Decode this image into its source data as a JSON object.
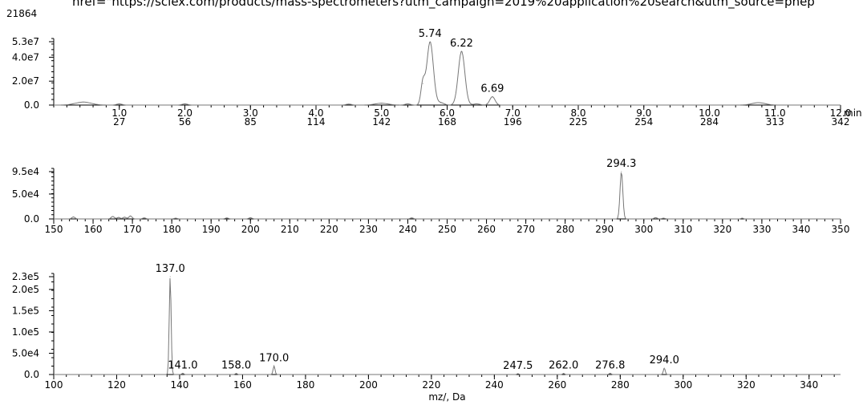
{
  "header": {
    "counter": "21864",
    "href_text": "href=\"https://sciex.com/products/mass-spectrometers?utm_campaign=2019%20application%20search&utm_source=phep"
  },
  "chart_data": [
    {
      "type": "line",
      "name": "chromatogram",
      "xlim": [
        0,
        12.0
      ],
      "ylim": [
        0,
        53000000.0
      ],
      "y_ticks": [
        {
          "value": 0,
          "label": "0.0"
        },
        {
          "value": 20000000.0,
          "label": "2.0e7"
        },
        {
          "value": 40000000.0,
          "label": "4.0e7"
        },
        {
          "value": 53000000.0,
          "label": "5.3e7"
        }
      ],
      "x_ticks": [
        {
          "value": 1.0,
          "label": "1.0",
          "scan": "27"
        },
        {
          "value": 2.0,
          "label": "2.0",
          "scan": "56"
        },
        {
          "value": 3.0,
          "label": "3.0",
          "scan": "85"
        },
        {
          "value": 4.0,
          "label": "4.0",
          "scan": "114"
        },
        {
          "value": 5.0,
          "label": "5.0",
          "scan": "142"
        },
        {
          "value": 6.0,
          "label": "6.0",
          "scan": "168"
        },
        {
          "value": 7.0,
          "label": "7.0",
          "scan": "196"
        },
        {
          "value": 8.0,
          "label": "8.0",
          "scan": "225"
        },
        {
          "value": 9.0,
          "label": "9.0",
          "scan": "254"
        },
        {
          "value": 10.0,
          "label": "10.0",
          "scan": "284"
        },
        {
          "value": 11.0,
          "label": "11.0",
          "scan": "313"
        },
        {
          "value": 12.0,
          "label": "12.0",
          "scan": "342"
        }
      ],
      "x_unit": "min",
      "peaks": [
        {
          "x": 0.45,
          "y": 2500000.0,
          "w": 0.12
        },
        {
          "x": 1.0,
          "y": 1000000.0,
          "w": 0.04
        },
        {
          "x": 2.0,
          "y": 1000000.0,
          "w": 0.04
        },
        {
          "x": 4.5,
          "y": 800000.0,
          "w": 0.04
        },
        {
          "x": 5.0,
          "y": 1500000.0,
          "w": 0.1
        },
        {
          "x": 5.4,
          "y": 1000000.0,
          "w": 0.04
        },
        {
          "x": 5.63,
          "y": 18000000.0,
          "w": 0.03
        },
        {
          "x": 5.74,
          "y": 53000000.0,
          "w": 0.05
        },
        {
          "x": 5.9,
          "y": 2000000.0,
          "w": 0.05
        },
        {
          "x": 6.22,
          "y": 45000000.0,
          "w": 0.05
        },
        {
          "x": 6.45,
          "y": 1000000.0,
          "w": 0.05
        },
        {
          "x": 6.69,
          "y": 7000000.0,
          "w": 0.04
        },
        {
          "x": 10.75,
          "y": 2000000.0,
          "w": 0.1
        }
      ],
      "peak_labels": [
        {
          "x": 5.74,
          "y": 53000000.0,
          "label": "5.74"
        },
        {
          "x": 6.22,
          "y": 45000000.0,
          "label": "6.22"
        },
        {
          "x": 6.69,
          "y": 7000000.0,
          "label": "6.69"
        }
      ]
    },
    {
      "type": "line",
      "name": "spectrum-full",
      "xlim": [
        150,
        350
      ],
      "ylim": [
        0,
        95000.0
      ],
      "y_ticks": [
        {
          "value": 0,
          "label": "0.0"
        },
        {
          "value": 50000.0,
          "label": "5.0e4"
        },
        {
          "value": 95000.0,
          "label": "9.5e4"
        }
      ],
      "x_ticks": [
        {
          "value": 150,
          "label": "150"
        },
        {
          "value": 160,
          "label": "160"
        },
        {
          "value": 170,
          "label": "170"
        },
        {
          "value": 180,
          "label": "180"
        },
        {
          "value": 190,
          "label": "190"
        },
        {
          "value": 200,
          "label": "200"
        },
        {
          "value": 210,
          "label": "210"
        },
        {
          "value": 220,
          "label": "220"
        },
        {
          "value": 230,
          "label": "230"
        },
        {
          "value": 240,
          "label": "240"
        },
        {
          "value": 250,
          "label": "250"
        },
        {
          "value": 260,
          "label": "260"
        },
        {
          "value": 270,
          "label": "270"
        },
        {
          "value": 280,
          "label": "280"
        },
        {
          "value": 290,
          "label": "290"
        },
        {
          "value": 300,
          "label": "300"
        },
        {
          "value": 310,
          "label": "310"
        },
        {
          "value": 320,
          "label": "320"
        },
        {
          "value": 330,
          "label": "330"
        },
        {
          "value": 340,
          "label": "340"
        },
        {
          "value": 350,
          "label": "350"
        }
      ],
      "peaks": [
        {
          "x": 155,
          "y": 4000,
          "w": 0.4
        },
        {
          "x": 165,
          "y": 5000,
          "w": 0.4
        },
        {
          "x": 166.5,
          "y": 3000,
          "w": 0.4
        },
        {
          "x": 168,
          "y": 3500,
          "w": 0.4
        },
        {
          "x": 169.5,
          "y": 6000,
          "w": 0.4
        },
        {
          "x": 173,
          "y": 2000,
          "w": 0.4
        },
        {
          "x": 181,
          "y": 1500,
          "w": 0.4
        },
        {
          "x": 194,
          "y": 2000,
          "w": 0.4
        },
        {
          "x": 200,
          "y": 2500,
          "w": 0.4
        },
        {
          "x": 241,
          "y": 2000,
          "w": 0.4
        },
        {
          "x": 294.3,
          "y": 95000.0,
          "w": 0.35
        },
        {
          "x": 303,
          "y": 2500,
          "w": 0.4
        },
        {
          "x": 305,
          "y": 1500,
          "w": 0.4
        },
        {
          "x": 325,
          "y": 1500,
          "w": 0.3
        }
      ],
      "peak_labels": [
        {
          "x": 294.3,
          "y": 95000.0,
          "label": "294.3"
        }
      ]
    },
    {
      "type": "line",
      "name": "spectrum-fragments",
      "xlim": [
        100,
        350
      ],
      "ylim": [
        0,
        230000.0
      ],
      "y_ticks": [
        {
          "value": 0,
          "label": "0.0"
        },
        {
          "value": 50000.0,
          "label": "5.0e4"
        },
        {
          "value": 100000.0,
          "label": "1.0e5"
        },
        {
          "value": 150000.0,
          "label": "1.5e5"
        },
        {
          "value": 200000.0,
          "label": "2.0e5"
        },
        {
          "value": 230000.0,
          "label": "2.3e5"
        }
      ],
      "x_ticks": [
        {
          "value": 100,
          "label": "100"
        },
        {
          "value": 120,
          "label": "120"
        },
        {
          "value": 140,
          "label": "140"
        },
        {
          "value": 160,
          "label": "160"
        },
        {
          "value": 180,
          "label": "180"
        },
        {
          "value": 200,
          "label": "200"
        },
        {
          "value": 220,
          "label": "220"
        },
        {
          "value": 240,
          "label": "240"
        },
        {
          "value": 260,
          "label": "260"
        },
        {
          "value": 280,
          "label": "280"
        },
        {
          "value": 300,
          "label": "300"
        },
        {
          "value": 320,
          "label": "320"
        },
        {
          "value": 340,
          "label": "340"
        }
      ],
      "xlabel": "mz/, Da",
      "peaks": [
        {
          "x": 137.0,
          "y": 230000.0,
          "w": 0.3
        },
        {
          "x": 141.0,
          "y": 3000,
          "w": 0.3
        },
        {
          "x": 158.0,
          "y": 2500,
          "w": 0.3
        },
        {
          "x": 170.0,
          "y": 20000.0,
          "w": 0.3
        },
        {
          "x": 247.5,
          "y": 2000,
          "w": 0.3
        },
        {
          "x": 262.0,
          "y": 2500,
          "w": 0.3
        },
        {
          "x": 276.8,
          "y": 3000,
          "w": 0.3
        },
        {
          "x": 294.0,
          "y": 15000.0,
          "w": 0.3
        }
      ],
      "peak_labels": [
        {
          "x": 137.0,
          "y": 230000.0,
          "label": "137.0"
        },
        {
          "x": 141.0,
          "y": 3000,
          "label": "141.0"
        },
        {
          "x": 158.0,
          "y": 2500,
          "label": "158.0"
        },
        {
          "x": 170.0,
          "y": 20000.0,
          "label": "170.0"
        },
        {
          "x": 247.5,
          "y": 2000,
          "label": "247.5"
        },
        {
          "x": 262.0,
          "y": 2500,
          "label": "262.0"
        },
        {
          "x": 276.8,
          "y": 3000,
          "label": "276.8"
        },
        {
          "x": 294.0,
          "y": 15000.0,
          "label": "294.0"
        }
      ]
    }
  ]
}
